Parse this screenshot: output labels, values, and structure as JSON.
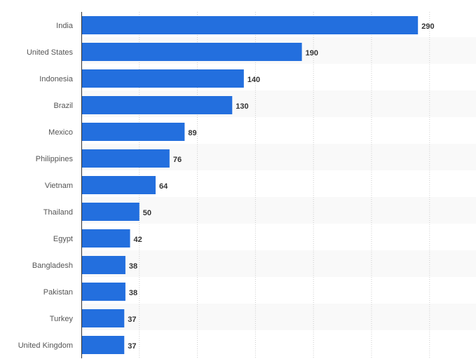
{
  "chart_data": {
    "type": "bar",
    "orientation": "horizontal",
    "categories": [
      "India",
      "United States",
      "Indonesia",
      "Brazil",
      "Mexico",
      "Philippines",
      "Vietnam",
      "Thailand",
      "Egypt",
      "Bangladesh",
      "Pakistan",
      "Turkey",
      "United Kingdom"
    ],
    "values": [
      290,
      190,
      140,
      130,
      89,
      76,
      64,
      50,
      42,
      38,
      38,
      37,
      37
    ],
    "title": "",
    "xlabel": "",
    "ylabel": "",
    "xlim": [
      0,
      340
    ],
    "grid": {
      "vertical": true,
      "step": 50,
      "style": "dotted"
    },
    "data_labels": true,
    "alternating_row_bands": true,
    "colors": {
      "bar": "#236fde",
      "band": "#f9f9f9",
      "grid": "#cccccc",
      "axis": "#333333"
    }
  }
}
